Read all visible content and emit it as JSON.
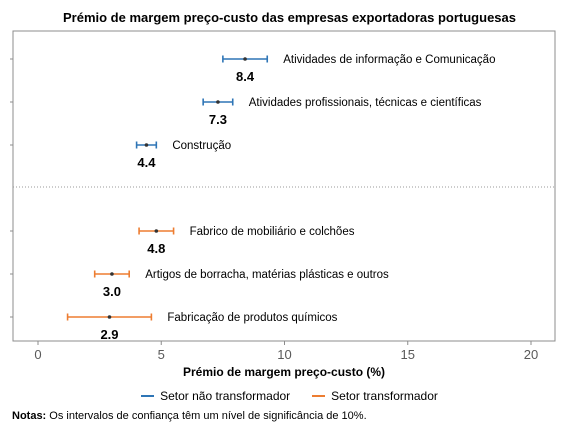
{
  "chart_data": {
    "type": "scatter",
    "title": "Prémio de margem preço-custo das empresas exportadoras portuguesas",
    "xlabel": "Prémio de margem preço-custo (%)",
    "ylabel": "",
    "xlim": [
      0,
      20
    ],
    "xticks": [
      0,
      5,
      10,
      15,
      20
    ],
    "series": [
      {
        "name": "Setor não transformador",
        "color": "#2e75b6",
        "points": [
          {
            "label": "Atividades de informação e Comunicação",
            "value": 8.4,
            "value_label": "8.4",
            "ci_low": 7.5,
            "ci_high": 9.3
          },
          {
            "label": "Atividades profissionais, técnicas e científicas",
            "value": 7.3,
            "value_label": "7.3",
            "ci_low": 6.7,
            "ci_high": 7.9
          },
          {
            "label": "Construção",
            "value": 4.4,
            "value_label": "4.4",
            "ci_low": 4.0,
            "ci_high": 4.8
          }
        ]
      },
      {
        "name": "Setor transformador",
        "color": "#ed7d31",
        "points": [
          {
            "label": "Fabrico de mobiliário e colchões",
            "value": 4.8,
            "value_label": "4.8",
            "ci_low": 4.1,
            "ci_high": 5.5
          },
          {
            "label": "Artigos de borracha, matérias plásticas e outros",
            "value": 3.0,
            "value_label": "3.0",
            "ci_low": 2.3,
            "ci_high": 3.7
          },
          {
            "label": "Fabricação de produtos químicos",
            "value": 2.9,
            "value_label": "2.9",
            "ci_low": 1.2,
            "ci_high": 4.6
          }
        ]
      }
    ],
    "separator": "dotted",
    "grid": false,
    "legend_position": "bottom"
  },
  "note": {
    "label": "Notas:",
    "text": "Os intervalos de confiança têm um nível de significância de 10%."
  }
}
